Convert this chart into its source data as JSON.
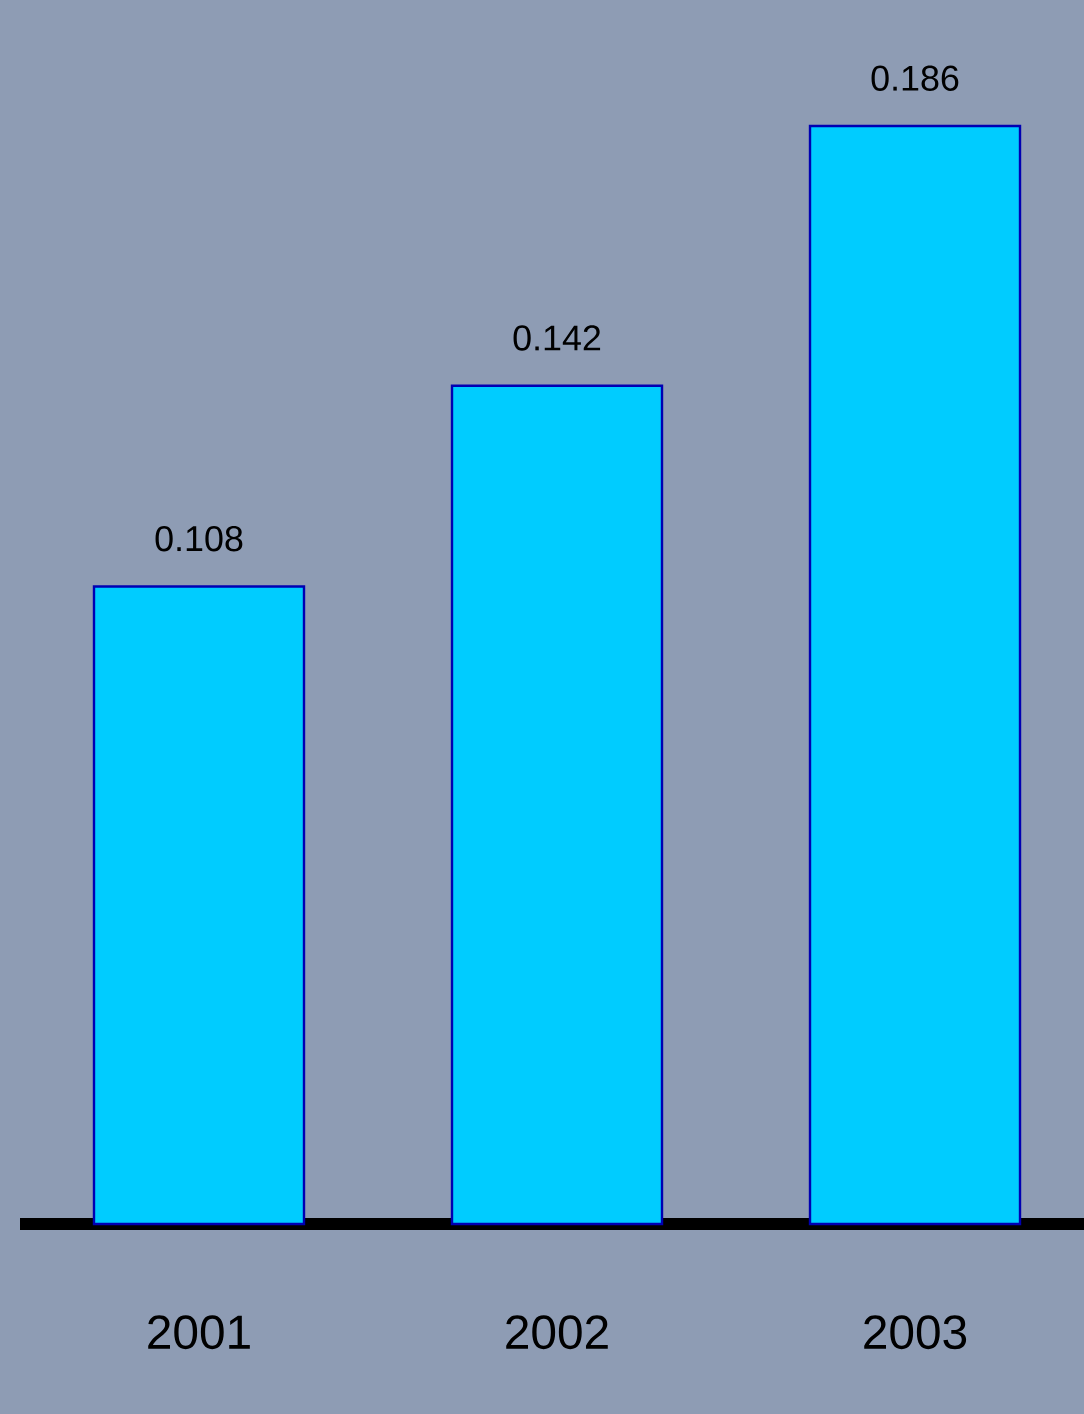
{
  "chart_data": {
    "type": "bar",
    "categories": [
      "2001",
      "2002",
      "2003"
    ],
    "values": [
      0.108,
      0.142,
      0.186
    ],
    "color": "#00ccff",
    "data_labels": true
  }
}
